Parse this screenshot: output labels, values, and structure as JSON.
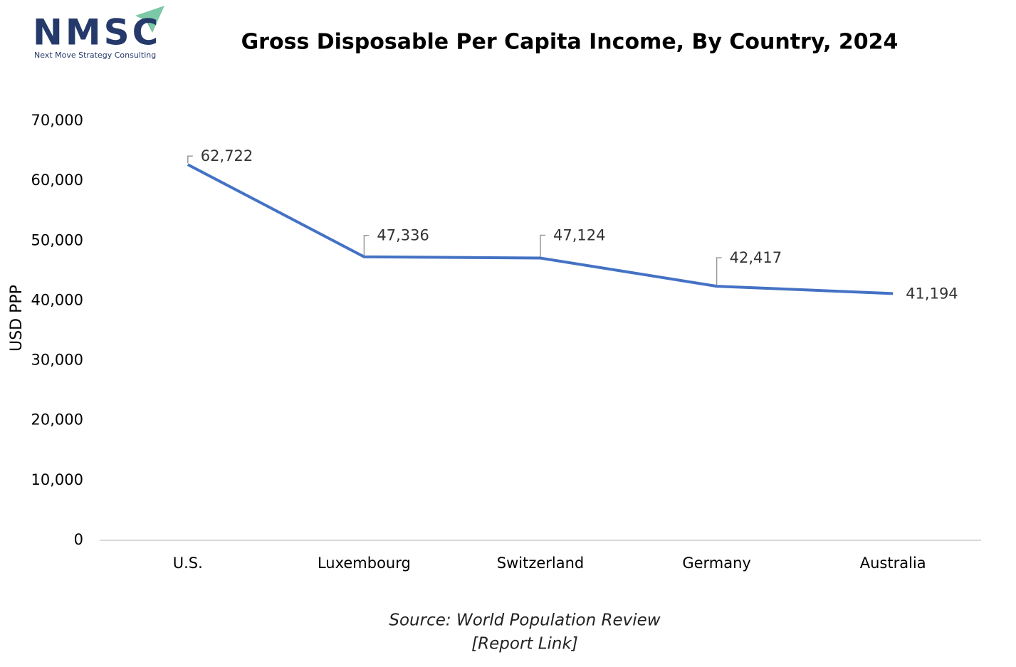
{
  "logo": {
    "name": "NMSC",
    "tagline": "Next Move Strategy Consulting"
  },
  "chart_data": {
    "type": "line",
    "title": "Gross Disposable Per Capita Income, By Country, 2024",
    "y_label": "USD PPP",
    "categories": [
      "U.S.",
      "Luxembourg",
      "Switzerland",
      "Germany",
      "Australia"
    ],
    "values": [
      62722,
      47336,
      47124,
      42417,
      41194
    ],
    "value_labels": [
      "62,722",
      "47,336",
      "47,124",
      "42,417",
      "41,194"
    ],
    "color": "#4472c4",
    "ylim": [
      0,
      70000
    ],
    "yticks": [
      0,
      {
        "value": 10000,
        "label": "10,000"
      },
      {
        "value": 20000,
        "label": "20,000"
      },
      {
        "value": 30000,
        "label": "30,000"
      },
      {
        "value": 40000,
        "label": "40,000"
      },
      {
        "value": 50000,
        "label": "50,000"
      },
      {
        "value": 60000,
        "label": "60,000"
      },
      {
        "value": 70000,
        "label": "70,000"
      }
    ],
    "grid": false,
    "source": "Source: World Population Review",
    "link": "[Report Link]"
  }
}
